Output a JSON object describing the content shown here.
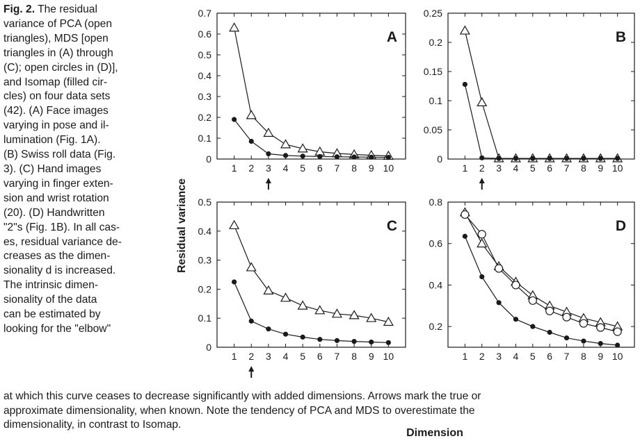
{
  "caption": {
    "fig_label": "Fig. 2.",
    "left_lines": [
      " The residual",
      "variance of PCA (open",
      "triangles), MDS [open",
      "triangles in (A) through",
      "(C); open circles in (D)],",
      "and Isomap (filled cir-",
      "cles) on four data sets",
      "(42). (A) Face images",
      "varying in pose and il-",
      "lumination (Fig. 1A).",
      "(B) Swiss roll data (Fig.",
      "3). (C) Hand images",
      "varying in finger exten-",
      "sion and wrist rotation",
      "(20). (D) Handwritten",
      "\"2\"s (Fig. 1B). In all cas-",
      "es, residual variance de-",
      "creases as the dimen-",
      "sionality d is increased.",
      "The intrinsic dimen-",
      "sionality of the data",
      "can be estimated by",
      "looking for the \"elbow\""
    ],
    "bottom_lines": [
      "at which this curve ceases to decrease significantly with added dimensions. Arrows mark the true or",
      "approximate dimensionality, when known. Note the tendency of PCA and MDS to overestimate the",
      "dimensionality, in contrast to Isomap."
    ]
  },
  "axes": {
    "ylabel": "Residual variance",
    "xlabel": "Dimension"
  },
  "chart_data": [
    {
      "type": "line",
      "panel_label": "A",
      "x": [
        1,
        2,
        3,
        4,
        5,
        6,
        7,
        8,
        9,
        10
      ],
      "ylim": [
        0,
        0.7
      ],
      "yticks": [
        "0",
        "0.1",
        "0.2",
        "0.3",
        "0.4",
        "0.5",
        "0.6",
        "0.7"
      ],
      "arrow_at": 3,
      "series": [
        {
          "marker": "triangle",
          "values": [
            0.63,
            0.21,
            0.125,
            0.07,
            0.05,
            0.035,
            0.027,
            0.022,
            0.018,
            0.015
          ]
        },
        {
          "marker": "filled-circle",
          "values": [
            0.19,
            0.085,
            0.025,
            0.017,
            0.014,
            0.012,
            0.011,
            0.01,
            0.009,
            0.008
          ]
        }
      ]
    },
    {
      "type": "line",
      "panel_label": "B",
      "x": [
        1,
        2,
        3,
        4,
        5,
        6,
        7,
        8,
        9,
        10
      ],
      "ylim": [
        0,
        0.25
      ],
      "yticks": [
        "0",
        "0.05",
        "0.1",
        "0.15",
        "0.2",
        "0.25"
      ],
      "arrow_at": 2,
      "series": [
        {
          "marker": "triangle",
          "values": [
            0.22,
            0.097,
            0.001,
            0.001,
            0.001,
            0.001,
            0.001,
            0.001,
            0.001,
            0.001
          ]
        },
        {
          "marker": "filled-circle",
          "values": [
            0.128,
            0.002,
            0.001,
            0.001,
            0.001,
            0.001,
            0.001,
            0.001,
            0.001,
            0.001
          ]
        }
      ]
    },
    {
      "type": "line",
      "panel_label": "C",
      "x": [
        1,
        2,
        3,
        4,
        5,
        6,
        7,
        8,
        9,
        10
      ],
      "ylim": [
        0,
        0.5
      ],
      "yticks": [
        "0",
        "0.1",
        "0.2",
        "0.3",
        "0.4",
        "0.5"
      ],
      "arrow_at": 2,
      "series": [
        {
          "marker": "triangle",
          "values": [
            0.42,
            0.275,
            0.195,
            0.17,
            0.143,
            0.127,
            0.115,
            0.11,
            0.1,
            0.087
          ]
        },
        {
          "marker": "filled-circle",
          "values": [
            0.225,
            0.09,
            0.063,
            0.045,
            0.035,
            0.027,
            0.023,
            0.02,
            0.018,
            0.016
          ]
        }
      ]
    },
    {
      "type": "line",
      "panel_label": "D",
      "x": [
        1,
        2,
        3,
        4,
        5,
        6,
        7,
        8,
        9,
        10
      ],
      "ylim": [
        0.1,
        0.8
      ],
      "yticks": [
        "0.2",
        "0.4",
        "0.6",
        "0.8"
      ],
      "series": [
        {
          "marker": "triangle",
          "values": [
            0.75,
            0.6,
            0.49,
            0.415,
            0.35,
            0.3,
            0.27,
            0.24,
            0.22,
            0.2
          ]
        },
        {
          "marker": "open-circle",
          "values": [
            0.74,
            0.645,
            0.48,
            0.4,
            0.325,
            0.275,
            0.245,
            0.215,
            0.195,
            0.175
          ]
        },
        {
          "marker": "filled-circle",
          "values": [
            0.635,
            0.44,
            0.315,
            0.235,
            0.2,
            0.172,
            0.145,
            0.13,
            0.118,
            0.11
          ]
        }
      ]
    }
  ]
}
